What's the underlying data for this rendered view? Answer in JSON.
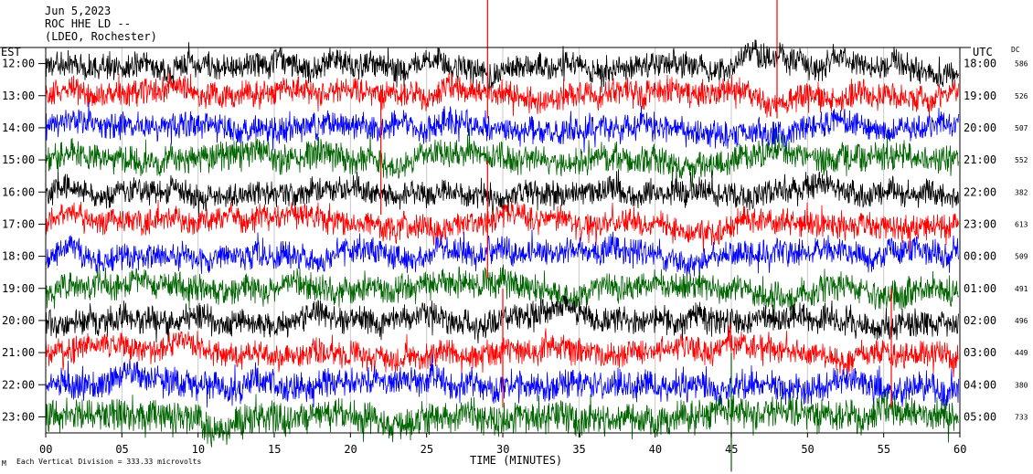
{
  "header": {
    "date": "Jun 5,2023",
    "station": "ROC HHE LD --",
    "location": "(LDEO, Rochester)"
  },
  "footer": {
    "scale_note": "Each Vertical Division = 333.33 microvolts",
    "corner_mark": "M"
  },
  "chart_data": {
    "type": "line",
    "title": "",
    "xlabel": "TIME (MINUTES)",
    "left_axis_title": "EST",
    "right_axis_title": "UTC",
    "dc_title": "DC",
    "xlim": [
      0,
      60
    ],
    "x_ticks": [
      0,
      5,
      10,
      15,
      20,
      25,
      30,
      35,
      40,
      45,
      50,
      55,
      60
    ],
    "x_tick_labels": [
      "00",
      "05",
      "10",
      "15",
      "20",
      "25",
      "30",
      "35",
      "40",
      "45",
      "50",
      "55",
      "60"
    ],
    "grid": "vertical",
    "colors": [
      "#000000",
      "#ff0000",
      "#0000ff",
      "#006400"
    ],
    "rows": [
      {
        "est": "12:00",
        "utc": "18:00",
        "dc": "586",
        "color": "#000000",
        "amp": 1.0
      },
      {
        "est": "13:00",
        "utc": "19:00",
        "dc": "526",
        "color": "#ff0000",
        "amp": 1.0
      },
      {
        "est": "14:00",
        "utc": "20:00",
        "dc": "507",
        "color": "#0000ff",
        "amp": 1.0
      },
      {
        "est": "15:00",
        "utc": "21:00",
        "dc": "552",
        "color": "#006400",
        "amp": 1.05
      },
      {
        "est": "16:00",
        "utc": "22:00",
        "dc": "382",
        "color": "#000000",
        "amp": 0.95
      },
      {
        "est": "17:00",
        "utc": "23:00",
        "dc": "613",
        "color": "#ff0000",
        "amp": 1.0
      },
      {
        "est": "18:00",
        "utc": "00:00",
        "dc": "509",
        "color": "#0000ff",
        "amp": 1.0
      },
      {
        "est": "19:00",
        "utc": "01:00",
        "dc": "491",
        "color": "#006400",
        "amp": 1.05
      },
      {
        "est": "20:00",
        "utc": "02:00",
        "dc": "496",
        "color": "#000000",
        "amp": 1.0
      },
      {
        "est": "21:00",
        "utc": "03:00",
        "dc": "449",
        "color": "#ff0000",
        "amp": 1.0
      },
      {
        "est": "22:00",
        "utc": "04:00",
        "dc": "380",
        "color": "#0000ff",
        "amp": 1.1
      },
      {
        "est": "23:00",
        "utc": "05:00",
        "dc": "733",
        "color": "#006400",
        "amp": 1.25
      }
    ],
    "spikes": [
      {
        "row": 0,
        "minute": 29.0,
        "color": "#ff0000"
      },
      {
        "row": 0,
        "minute": 48.0,
        "color": "#ff0000"
      },
      {
        "row": 3,
        "minute": 22.0,
        "color": "#ff0000"
      },
      {
        "row": 5,
        "minute": 29.0,
        "color": "#ff0000"
      },
      {
        "row": 9,
        "minute": 30.0,
        "color": "#ff0000"
      },
      {
        "row": 9,
        "minute": 55.5,
        "color": "#ff0000"
      },
      {
        "row": 11,
        "minute": 45.0,
        "color": "#006400"
      }
    ]
  }
}
